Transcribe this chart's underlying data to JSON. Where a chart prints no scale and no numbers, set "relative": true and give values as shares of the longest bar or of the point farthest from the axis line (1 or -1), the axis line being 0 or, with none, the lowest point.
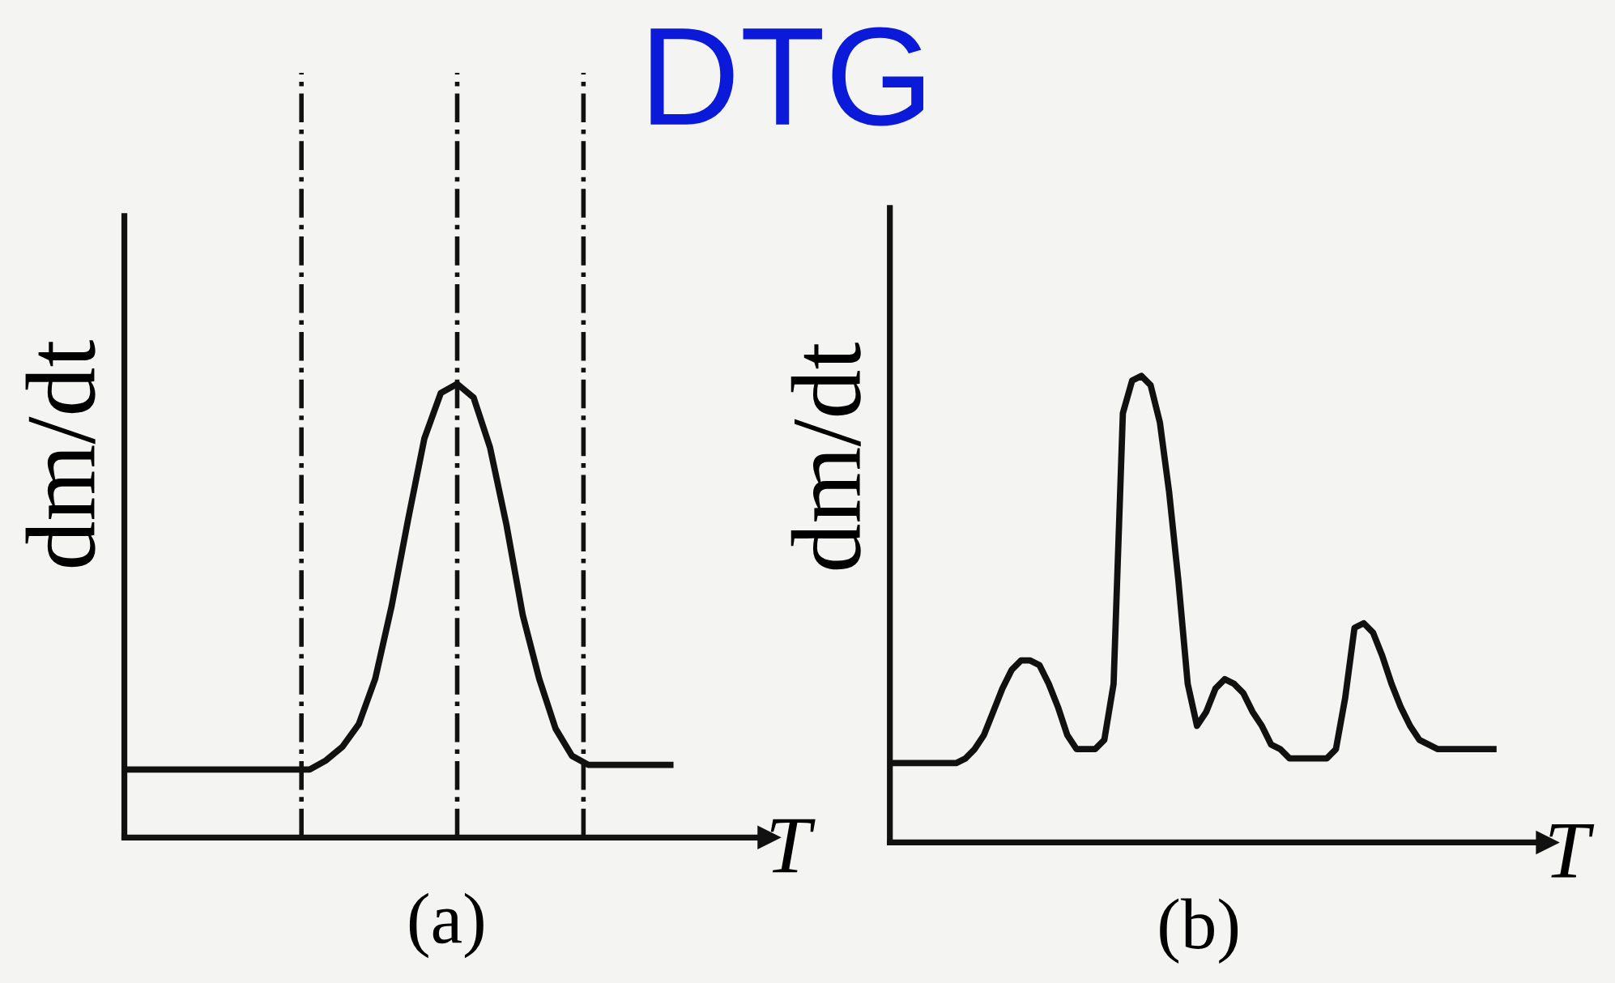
{
  "chart_data": [
    {
      "type": "line",
      "title": "DTG",
      "ylabel": "dm/dt",
      "xlabel": "T",
      "annotations": [
        "(a)"
      ],
      "relative": true,
      "grid": false,
      "legend": false,
      "marker": "none",
      "line_style": "solid",
      "categories": [
        null,
        null,
        null,
        null,
        null,
        null,
        null,
        null,
        null,
        null,
        null,
        null,
        null,
        null,
        null,
        null,
        null,
        null,
        null,
        null,
        null,
        null,
        null,
        null,
        null,
        null,
        null,
        null,
        null,
        null,
        null,
        null,
        null,
        null
      ],
      "series": [
        {
          "color": "#111111",
          "values": [
            0.15,
            0.15,
            0.15,
            0.15,
            0.15,
            0.15,
            0.15,
            0.15,
            0.15,
            0.15,
            0.15,
            0.15,
            0.17,
            0.2,
            0.25,
            0.35,
            0.51,
            0.7,
            0.88,
            0.98,
            1,
            0.97,
            0.86,
            0.69,
            0.49,
            0.35,
            0.24,
            0.18,
            0.16,
            0.16,
            0.16,
            0.16,
            0.16,
            0.16
          ]
        }
      ]
    },
    {
      "type": "line",
      "ylabel": "dm/dt",
      "xlabel": "T",
      "annotations": [
        "(b)"
      ],
      "relative": true,
      "grid": false,
      "legend": false,
      "marker": "none",
      "line_style": "solid",
      "categories": [
        null,
        null,
        null,
        null,
        null,
        null,
        null,
        null,
        null,
        null,
        null,
        null,
        null,
        null,
        null,
        null,
        null,
        null,
        null,
        null,
        null,
        null,
        null,
        null,
        null,
        null,
        null,
        null,
        null,
        null,
        null,
        null,
        null,
        null,
        null,
        null,
        null,
        null,
        null,
        null,
        null,
        null,
        null,
        null,
        null,
        null,
        null,
        null,
        null,
        null,
        null,
        null,
        null,
        null,
        null,
        null,
        null,
        null,
        null,
        null,
        null,
        null,
        null,
        null,
        null,
        null
      ],
      "series": [
        {
          "color": "#111111",
          "values": [
            0.17,
            0.17,
            0.17,
            0.17,
            0.17,
            0.17,
            0.17,
            0.17,
            0.18,
            0.2,
            0.23,
            0.28,
            0.33,
            0.37,
            0.39,
            0.39,
            0.38,
            0.34,
            0.29,
            0.23,
            0.2,
            0.2,
            0.2,
            0.22,
            0.34,
            0.92,
            0.99,
            1,
            0.98,
            0.9,
            0.75,
            0.56,
            0.34,
            0.25,
            0.28,
            0.33,
            0.35,
            0.34,
            0.32,
            0.28,
            0.25,
            0.21,
            0.2,
            0.18,
            0.18,
            0.18,
            0.18,
            0.18,
            0.2,
            0.31,
            0.46,
            0.47,
            0.45,
            0.4,
            0.34,
            0.29,
            0.25,
            0.22,
            0.21,
            0.2,
            0.2,
            0.2,
            0.2,
            0.2,
            0.2,
            0.2
          ]
        }
      ]
    }
  ]
}
